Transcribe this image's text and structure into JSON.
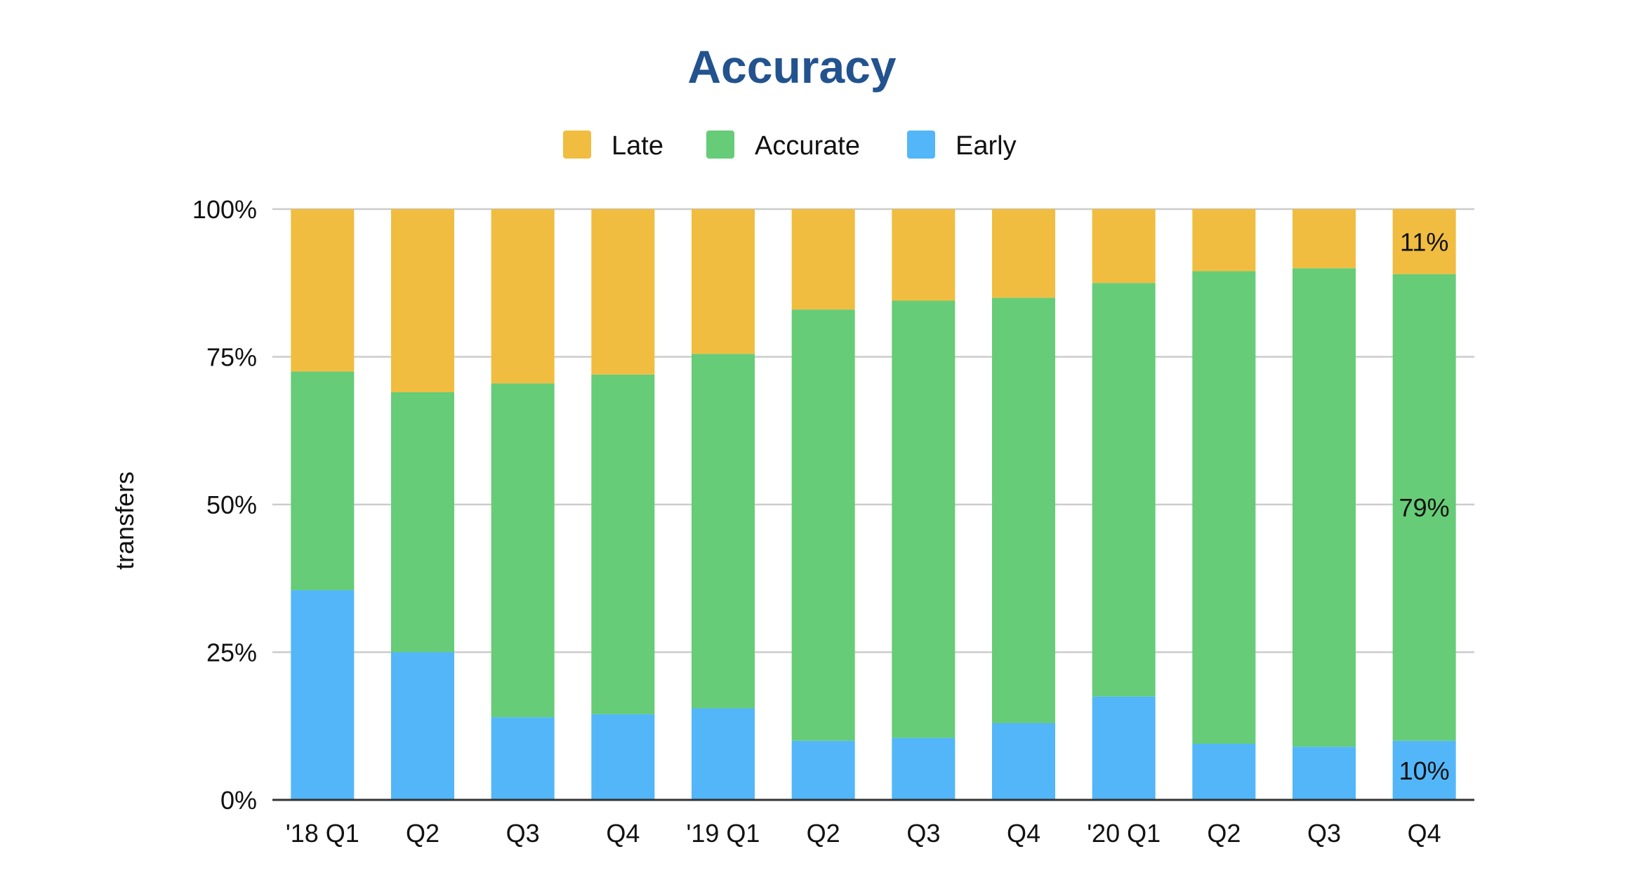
{
  "chart_data": {
    "type": "bar",
    "stacked": "percent",
    "title": "Accuracy",
    "xlabel": "",
    "ylabel": "transfers",
    "ylim": [
      0,
      100
    ],
    "yticks": [
      "0%",
      "25%",
      "50%",
      "75%",
      "100%"
    ],
    "grid": true,
    "legend_position": "top",
    "categories": [
      "'18 Q1",
      "Q2",
      "Q3",
      "Q4",
      "'19 Q1",
      "Q2",
      "Q3",
      "Q4",
      "'20 Q1",
      "Q2",
      "Q3",
      "Q4"
    ],
    "series": [
      {
        "name": "Early",
        "color": "#53b6f9",
        "values": [
          35.5,
          25,
          14,
          14.5,
          15.5,
          10,
          10.5,
          13,
          17.5,
          9.5,
          9,
          10
        ]
      },
      {
        "name": "Accurate",
        "color": "#66cc77",
        "values": [
          37,
          44,
          56.5,
          57.5,
          60,
          73,
          74,
          72,
          70,
          80,
          81,
          79
        ]
      },
      {
        "name": "Late",
        "color": "#f1bd40",
        "values": [
          27.5,
          31,
          29.5,
          28,
          24.5,
          17,
          15.5,
          15,
          12.5,
          10.5,
          10,
          11
        ]
      }
    ],
    "legend_order": [
      "Late",
      "Accurate",
      "Early"
    ],
    "data_labels": [
      {
        "category_index": 11,
        "series": "Late",
        "text": "11%"
      },
      {
        "category_index": 11,
        "series": "Accurate",
        "text": "79%"
      },
      {
        "category_index": 11,
        "series": "Early",
        "text": "10%"
      }
    ],
    "colors": {
      "title": "#23538f",
      "text": "#111111",
      "grid": "#cccccc",
      "axis": "#333333"
    }
  }
}
